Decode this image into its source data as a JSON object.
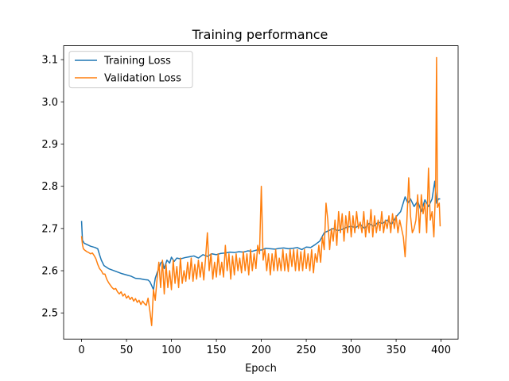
{
  "chart_data": {
    "type": "line",
    "title": "Training performance",
    "xlabel": "Epoch",
    "ylabel": "",
    "xlim": [
      -19.95,
      418.95
    ],
    "ylim": [
      2.438,
      3.133
    ],
    "xticks": [
      0,
      50,
      100,
      150,
      200,
      250,
      300,
      350,
      400
    ],
    "yticks": [
      2.5,
      2.6,
      2.7,
      2.8,
      2.9,
      3.0,
      3.1
    ],
    "ytick_labels": [
      "2.5",
      "2.6",
      "2.7",
      "2.8",
      "2.9",
      "3.0",
      "3.1"
    ],
    "legend": "upper-left",
    "grid": false,
    "series": [
      {
        "name": "Training Loss",
        "color": "#1f77b4",
        "points": [
          [
            0,
            2.718
          ],
          [
            1,
            2.672
          ],
          [
            3,
            2.665
          ],
          [
            6,
            2.662
          ],
          [
            10,
            2.658
          ],
          [
            15,
            2.655
          ],
          [
            18,
            2.652
          ],
          [
            20,
            2.638
          ],
          [
            22,
            2.625
          ],
          [
            25,
            2.612
          ],
          [
            30,
            2.605
          ],
          [
            35,
            2.601
          ],
          [
            40,
            2.597
          ],
          [
            45,
            2.593
          ],
          [
            50,
            2.59
          ],
          [
            55,
            2.587
          ],
          [
            60,
            2.582
          ],
          [
            65,
            2.581
          ],
          [
            70,
            2.579
          ],
          [
            74,
            2.578
          ],
          [
            76,
            2.574
          ],
          [
            78,
            2.565
          ],
          [
            80,
            2.555
          ],
          [
            82,
            2.582
          ],
          [
            84,
            2.595
          ],
          [
            86,
            2.605
          ],
          [
            88,
            2.618
          ],
          [
            90,
            2.622
          ],
          [
            92,
            2.605
          ],
          [
            95,
            2.625
          ],
          [
            98,
            2.618
          ],
          [
            100,
            2.632
          ],
          [
            103,
            2.622
          ],
          [
            106,
            2.63
          ],
          [
            110,
            2.628
          ],
          [
            115,
            2.631
          ],
          [
            120,
            2.633
          ],
          [
            125,
            2.635
          ],
          [
            130,
            2.63
          ],
          [
            135,
            2.638
          ],
          [
            140,
            2.634
          ],
          [
            145,
            2.64
          ],
          [
            150,
            2.638
          ],
          [
            155,
            2.641
          ],
          [
            160,
            2.642
          ],
          [
            165,
            2.644
          ],
          [
            170,
            2.643
          ],
          [
            175,
            2.645
          ],
          [
            180,
            2.644
          ],
          [
            185,
            2.647
          ],
          [
            190,
            2.646
          ],
          [
            195,
            2.649
          ],
          [
            200,
            2.649
          ],
          [
            205,
            2.653
          ],
          [
            210,
            2.652
          ],
          [
            215,
            2.651
          ],
          [
            220,
            2.653
          ],
          [
            225,
            2.654
          ],
          [
            230,
            2.652
          ],
          [
            235,
            2.653
          ],
          [
            240,
            2.655
          ],
          [
            245,
            2.65
          ],
          [
            250,
            2.656
          ],
          [
            255,
            2.655
          ],
          [
            260,
            2.662
          ],
          [
            265,
            2.67
          ],
          [
            270,
            2.69
          ],
          [
            275,
            2.695
          ],
          [
            280,
            2.7
          ],
          [
            285,
            2.695
          ],
          [
            290,
            2.698
          ],
          [
            295,
            2.703
          ],
          [
            300,
            2.705
          ],
          [
            305,
            2.702
          ],
          [
            310,
            2.71
          ],
          [
            315,
            2.7
          ],
          [
            320,
            2.712
          ],
          [
            325,
            2.705
          ],
          [
            330,
            2.715
          ],
          [
            335,
            2.712
          ],
          [
            340,
            2.72
          ],
          [
            345,
            2.71
          ],
          [
            350,
            2.728
          ],
          [
            355,
            2.74
          ],
          [
            360,
            2.775
          ],
          [
            363,
            2.76
          ],
          [
            366,
            2.77
          ],
          [
            370,
            2.752
          ],
          [
            374,
            2.765
          ],
          [
            378,
            2.74
          ],
          [
            382,
            2.768
          ],
          [
            386,
            2.752
          ],
          [
            390,
            2.77
          ],
          [
            393,
            2.812
          ],
          [
            395,
            2.76
          ],
          [
            397,
            2.77
          ],
          [
            399,
            2.77
          ]
        ]
      },
      {
        "name": "Validation Loss",
        "color": "#ff7f0e",
        "points": [
          [
            0,
            2.682
          ],
          [
            1,
            2.662
          ],
          [
            2,
            2.652
          ],
          [
            4,
            2.648
          ],
          [
            6,
            2.645
          ],
          [
            8,
            2.643
          ],
          [
            10,
            2.64
          ],
          [
            12,
            2.642
          ],
          [
            14,
            2.636
          ],
          [
            16,
            2.628
          ],
          [
            18,
            2.615
          ],
          [
            20,
            2.605
          ],
          [
            22,
            2.6
          ],
          [
            24,
            2.592
          ],
          [
            26,
            2.592
          ],
          [
            28,
            2.58
          ],
          [
            30,
            2.572
          ],
          [
            32,
            2.566
          ],
          [
            34,
            2.56
          ],
          [
            36,
            2.556
          ],
          [
            38,
            2.558
          ],
          [
            40,
            2.55
          ],
          [
            42,
            2.545
          ],
          [
            44,
            2.55
          ],
          [
            46,
            2.54
          ],
          [
            48,
            2.545
          ],
          [
            50,
            2.535
          ],
          [
            52,
            2.54
          ],
          [
            54,
            2.532
          ],
          [
            56,
            2.537
          ],
          [
            58,
            2.528
          ],
          [
            60,
            2.534
          ],
          [
            62,
            2.525
          ],
          [
            64,
            2.53
          ],
          [
            66,
            2.52
          ],
          [
            68,
            2.528
          ],
          [
            70,
            2.522
          ],
          [
            72,
            2.518
          ],
          [
            74,
            2.535
          ],
          [
            76,
            2.505
          ],
          [
            78,
            2.47
          ],
          [
            80,
            2.555
          ],
          [
            82,
            2.53
          ],
          [
            84,
            2.58
          ],
          [
            86,
            2.62
          ],
          [
            88,
            2.56
          ],
          [
            90,
            2.625
          ],
          [
            92,
            2.545
          ],
          [
            94,
            2.615
          ],
          [
            96,
            2.56
          ],
          [
            98,
            2.6
          ],
          [
            100,
            2.555
          ],
          [
            102,
            2.625
          ],
          [
            104,
            2.57
          ],
          [
            106,
            2.61
          ],
          [
            108,
            2.56
          ],
          [
            110,
            2.63
          ],
          [
            112,
            2.57
          ],
          [
            114,
            2.6
          ],
          [
            116,
            2.575
          ],
          [
            118,
            2.62
          ],
          [
            120,
            2.58
          ],
          [
            122,
            2.63
          ],
          [
            124,
            2.575
          ],
          [
            126,
            2.615
          ],
          [
            128,
            2.58
          ],
          [
            130,
            2.625
          ],
          [
            132,
            2.585
          ],
          [
            134,
            2.62
          ],
          [
            136,
            2.578
          ],
          [
            138,
            2.63
          ],
          [
            140,
            2.69
          ],
          [
            142,
            2.6
          ],
          [
            144,
            2.64
          ],
          [
            146,
            2.58
          ],
          [
            148,
            2.62
          ],
          [
            150,
            2.585
          ],
          [
            152,
            2.64
          ],
          [
            154,
            2.59
          ],
          [
            156,
            2.62
          ],
          [
            158,
            2.585
          ],
          [
            160,
            2.66
          ],
          [
            162,
            2.6
          ],
          [
            164,
            2.64
          ],
          [
            166,
            2.58
          ],
          [
            168,
            2.635
          ],
          [
            170,
            2.59
          ],
          [
            172,
            2.64
          ],
          [
            174,
            2.6
          ],
          [
            176,
            2.63
          ],
          [
            178,
            2.595
          ],
          [
            180,
            2.645
          ],
          [
            182,
            2.6
          ],
          [
            184,
            2.64
          ],
          [
            186,
            2.59
          ],
          [
            188,
            2.65
          ],
          [
            190,
            2.6
          ],
          [
            192,
            2.64
          ],
          [
            194,
            2.605
          ],
          [
            196,
            2.66
          ],
          [
            198,
            2.64
          ],
          [
            200,
            2.8
          ],
          [
            202,
            2.625
          ],
          [
            204,
            2.65
          ],
          [
            206,
            2.6
          ],
          [
            208,
            2.64
          ],
          [
            210,
            2.59
          ],
          [
            212,
            2.64
          ],
          [
            214,
            2.6
          ],
          [
            216,
            2.65
          ],
          [
            218,
            2.6
          ],
          [
            220,
            2.63
          ],
          [
            222,
            2.6
          ],
          [
            224,
            2.65
          ],
          [
            226,
            2.6
          ],
          [
            228,
            2.64
          ],
          [
            230,
            2.598
          ],
          [
            232,
            2.65
          ],
          [
            234,
            2.61
          ],
          [
            236,
            2.65
          ],
          [
            238,
            2.6
          ],
          [
            240,
            2.65
          ],
          [
            242,
            2.6
          ],
          [
            244,
            2.645
          ],
          [
            246,
            2.6
          ],
          [
            248,
            2.65
          ],
          [
            250,
            2.605
          ],
          [
            252,
            2.64
          ],
          [
            254,
            2.6
          ],
          [
            256,
            2.65
          ],
          [
            258,
            2.595
          ],
          [
            260,
            2.64
          ],
          [
            262,
            2.62
          ],
          [
            264,
            2.66
          ],
          [
            266,
            2.62
          ],
          [
            268,
            2.68
          ],
          [
            270,
            2.65
          ],
          [
            272,
            2.76
          ],
          [
            274,
            2.72
          ],
          [
            276,
            2.65
          ],
          [
            278,
            2.7
          ],
          [
            280,
            2.67
          ],
          [
            282,
            2.72
          ],
          [
            284,
            2.66
          ],
          [
            286,
            2.74
          ],
          [
            288,
            2.69
          ],
          [
            290,
            2.735
          ],
          [
            292,
            2.67
          ],
          [
            294,
            2.73
          ],
          [
            296,
            2.69
          ],
          [
            298,
            2.74
          ],
          [
            300,
            2.68
          ],
          [
            302,
            2.73
          ],
          [
            304,
            2.69
          ],
          [
            306,
            2.74
          ],
          [
            308,
            2.7
          ],
          [
            310,
            2.715
          ],
          [
            312,
            2.69
          ],
          [
            314,
            2.74
          ],
          [
            316,
            2.68
          ],
          [
            318,
            2.72
          ],
          [
            320,
            2.69
          ],
          [
            322,
            2.745
          ],
          [
            324,
            2.68
          ],
          [
            326,
            2.73
          ],
          [
            328,
            2.69
          ],
          [
            330,
            2.72
          ],
          [
            332,
            2.695
          ],
          [
            334,
            2.74
          ],
          [
            336,
            2.69
          ],
          [
            338,
            2.72
          ],
          [
            340,
            2.7
          ],
          [
            342,
            2.73
          ],
          [
            344,
            2.69
          ],
          [
            346,
            2.735
          ],
          [
            348,
            2.7
          ],
          [
            350,
            2.73
          ],
          [
            352,
            2.69
          ],
          [
            354,
            2.72
          ],
          [
            356,
            2.7
          ],
          [
            358,
            2.68
          ],
          [
            360,
            2.633
          ],
          [
            362,
            2.72
          ],
          [
            364,
            2.82
          ],
          [
            366,
            2.73
          ],
          [
            368,
            2.69
          ],
          [
            370,
            2.7
          ],
          [
            372,
            2.72
          ],
          [
            374,
            2.78
          ],
          [
            376,
            2.69
          ],
          [
            378,
            2.78
          ],
          [
            380,
            2.735
          ],
          [
            382,
            2.76
          ],
          [
            384,
            2.69
          ],
          [
            386,
            2.843
          ],
          [
            388,
            2.72
          ],
          [
            390,
            2.74
          ],
          [
            392,
            2.68
          ],
          [
            394,
            2.8
          ],
          [
            395,
            3.105
          ],
          [
            396,
            2.75
          ],
          [
            398,
            2.76
          ],
          [
            399,
            2.705
          ]
        ]
      }
    ]
  }
}
